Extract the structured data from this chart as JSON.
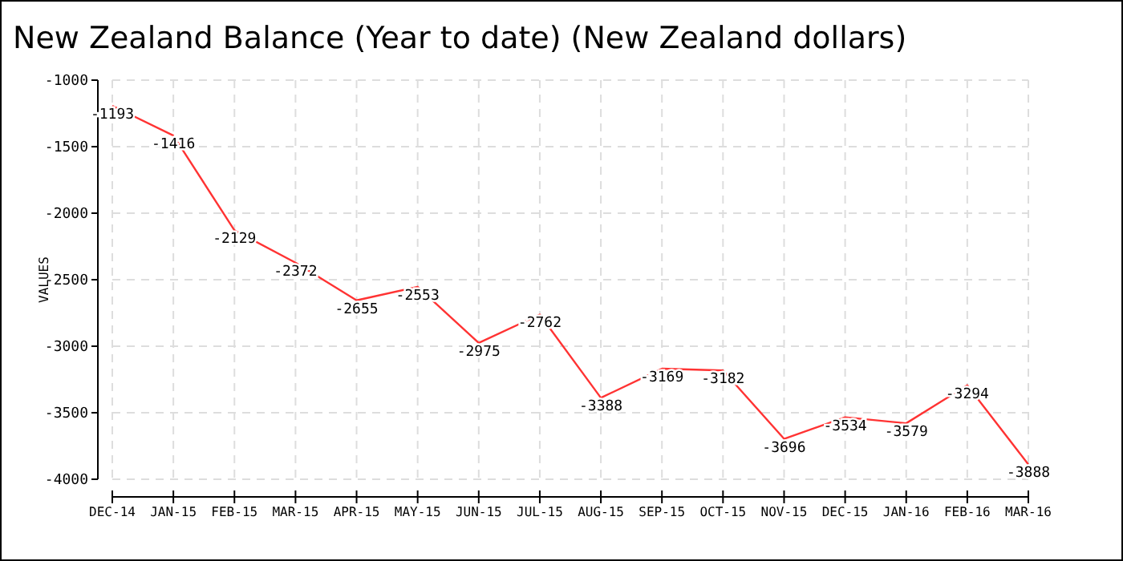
{
  "chart_data": {
    "type": "line",
    "title": "New Zealand Balance (Year to date) (New Zealand dollars)",
    "ylabel": "VALUES",
    "categories": [
      "DEC-14",
      "JAN-15",
      "FEB-15",
      "MAR-15",
      "APR-15",
      "MAY-15",
      "JUN-15",
      "JUL-15",
      "AUG-15",
      "SEP-15",
      "OCT-15",
      "NOV-15",
      "DEC-15",
      "JAN-16",
      "FEB-16",
      "MAR-16"
    ],
    "series": [
      {
        "color": "#ff3333",
        "values": [
          -1193,
          -1416,
          -2129,
          -2372,
          -2655,
          -2553,
          -2975,
          -2762,
          -3388,
          -3169,
          -3182,
          -3696,
          -3534,
          -3579,
          -3294,
          -3888
        ]
      }
    ],
    "ylim": [
      -4000,
      -1000
    ],
    "yticks": [
      -4000,
      -3500,
      -3000,
      -2500,
      -2000,
      -1500,
      -1000
    ],
    "grid": true,
    "data_labels": true,
    "marker": "none",
    "line_style": "solid"
  }
}
